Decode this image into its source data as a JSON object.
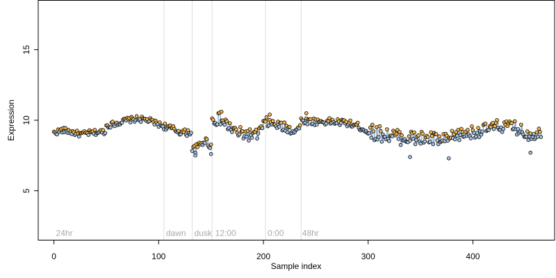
{
  "chart_data": {
    "type": "line",
    "title": "",
    "xlabel": "Sample index",
    "ylabel": "Expression",
    "xlim": [
      -15,
      478
    ],
    "ylim": [
      1.5,
      18.5
    ],
    "xticks": [
      0,
      100,
      200,
      300,
      400
    ],
    "yticks": [
      5,
      10,
      15
    ],
    "grid": false,
    "legend": "none",
    "colors": {
      "line": "#9bb8da",
      "point_highlight": "#f5b74d",
      "point_default": "#a9c4e4",
      "point_edge": "#000000",
      "vline": "#dddddd",
      "annotation": "#a8a8a8"
    },
    "annotations": [
      {
        "label": "24hr",
        "x": 0,
        "y": 2.0
      },
      {
        "label": "dawn",
        "x": 105,
        "y": 2.0
      },
      {
        "label": "dusk",
        "x": 132,
        "y": 2.0
      },
      {
        "label": "12:00",
        "x": 152,
        "y": 2.0
      },
      {
        "label": "0:00",
        "x": 202,
        "y": 2.0
      },
      {
        "label": "48hr",
        "x": 235,
        "y": 2.0
      }
    ],
    "vlines": [
      105,
      132,
      151,
      202,
      236
    ],
    "segments": [
      {
        "x_start": 0,
        "x_end": 49,
        "anchors": [
          [
            0,
            9.1
          ],
          [
            8,
            9.3
          ],
          [
            15,
            9.2
          ],
          [
            25,
            9.0
          ],
          [
            35,
            9.1
          ],
          [
            42,
            9.15
          ],
          [
            49,
            9.2
          ]
        ],
        "noise": 0.2
      },
      {
        "x_start": 50,
        "x_end": 104,
        "anchors": [
          [
            50,
            9.6
          ],
          [
            60,
            9.8
          ],
          [
            70,
            10.0
          ],
          [
            80,
            10.1
          ],
          [
            90,
            10.0
          ],
          [
            97,
            9.8
          ],
          [
            104,
            9.6
          ]
        ],
        "noise": 0.2
      },
      {
        "x_start": 105,
        "x_end": 131,
        "anchors": [
          [
            105,
            9.6
          ],
          [
            112,
            9.4
          ],
          [
            120,
            9.2
          ],
          [
            126,
            9.1
          ],
          [
            131,
            9.2
          ]
        ],
        "noise": 0.25
      },
      {
        "x_start": 132,
        "x_end": 150,
        "anchors": [
          [
            132,
            7.9
          ],
          [
            136,
            8.0
          ],
          [
            140,
            8.3
          ],
          [
            144,
            8.6
          ],
          [
            150,
            8.2
          ]
        ],
        "noise": 0.3
      },
      {
        "x_start": 151,
        "x_end": 201,
        "anchors": [
          [
            151,
            10.0
          ],
          [
            158,
            10.1
          ],
          [
            166,
            9.6
          ],
          [
            175,
            9.1
          ],
          [
            185,
            9.0
          ],
          [
            193,
            8.9
          ],
          [
            201,
            9.7
          ]
        ],
        "noise": 0.45
      },
      {
        "x_start": 202,
        "x_end": 235,
        "anchors": [
          [
            202,
            9.9
          ],
          [
            210,
            9.7
          ],
          [
            220,
            9.5
          ],
          [
            228,
            9.3
          ],
          [
            235,
            9.5
          ]
        ],
        "noise": 0.35
      },
      {
        "x_start": 236,
        "x_end": 300,
        "anchors": [
          [
            236,
            10.0
          ],
          [
            250,
            9.9
          ],
          [
            265,
            9.9
          ],
          [
            280,
            9.8
          ],
          [
            290,
            9.6
          ],
          [
            300,
            9.2
          ]
        ],
        "noise": 0.25
      },
      {
        "x_start": 301,
        "x_end": 380,
        "anchors": [
          [
            301,
            9.2
          ],
          [
            315,
            9.0
          ],
          [
            330,
            8.8
          ],
          [
            345,
            8.7
          ],
          [
            360,
            8.7
          ],
          [
            372,
            8.5
          ],
          [
            380,
            8.7
          ]
        ],
        "noise": 0.55
      },
      {
        "x_start": 381,
        "x_end": 465,
        "anchors": [
          [
            381,
            8.9
          ],
          [
            395,
            9.1
          ],
          [
            410,
            9.3
          ],
          [
            425,
            9.6
          ],
          [
            440,
            9.5
          ],
          [
            452,
            9.0
          ],
          [
            465,
            9.1
          ]
        ],
        "noise": 0.45
      }
    ],
    "extremes": [
      {
        "x": 135,
        "y": 7.5
      },
      {
        "x": 150,
        "y": 7.6
      },
      {
        "x": 160,
        "y": 10.6
      },
      {
        "x": 206,
        "y": 10.4
      },
      {
        "x": 241,
        "y": 10.5
      },
      {
        "x": 340,
        "y": 7.4
      },
      {
        "x": 377,
        "y": 7.3
      },
      {
        "x": 455,
        "y": 7.7
      }
    ]
  }
}
